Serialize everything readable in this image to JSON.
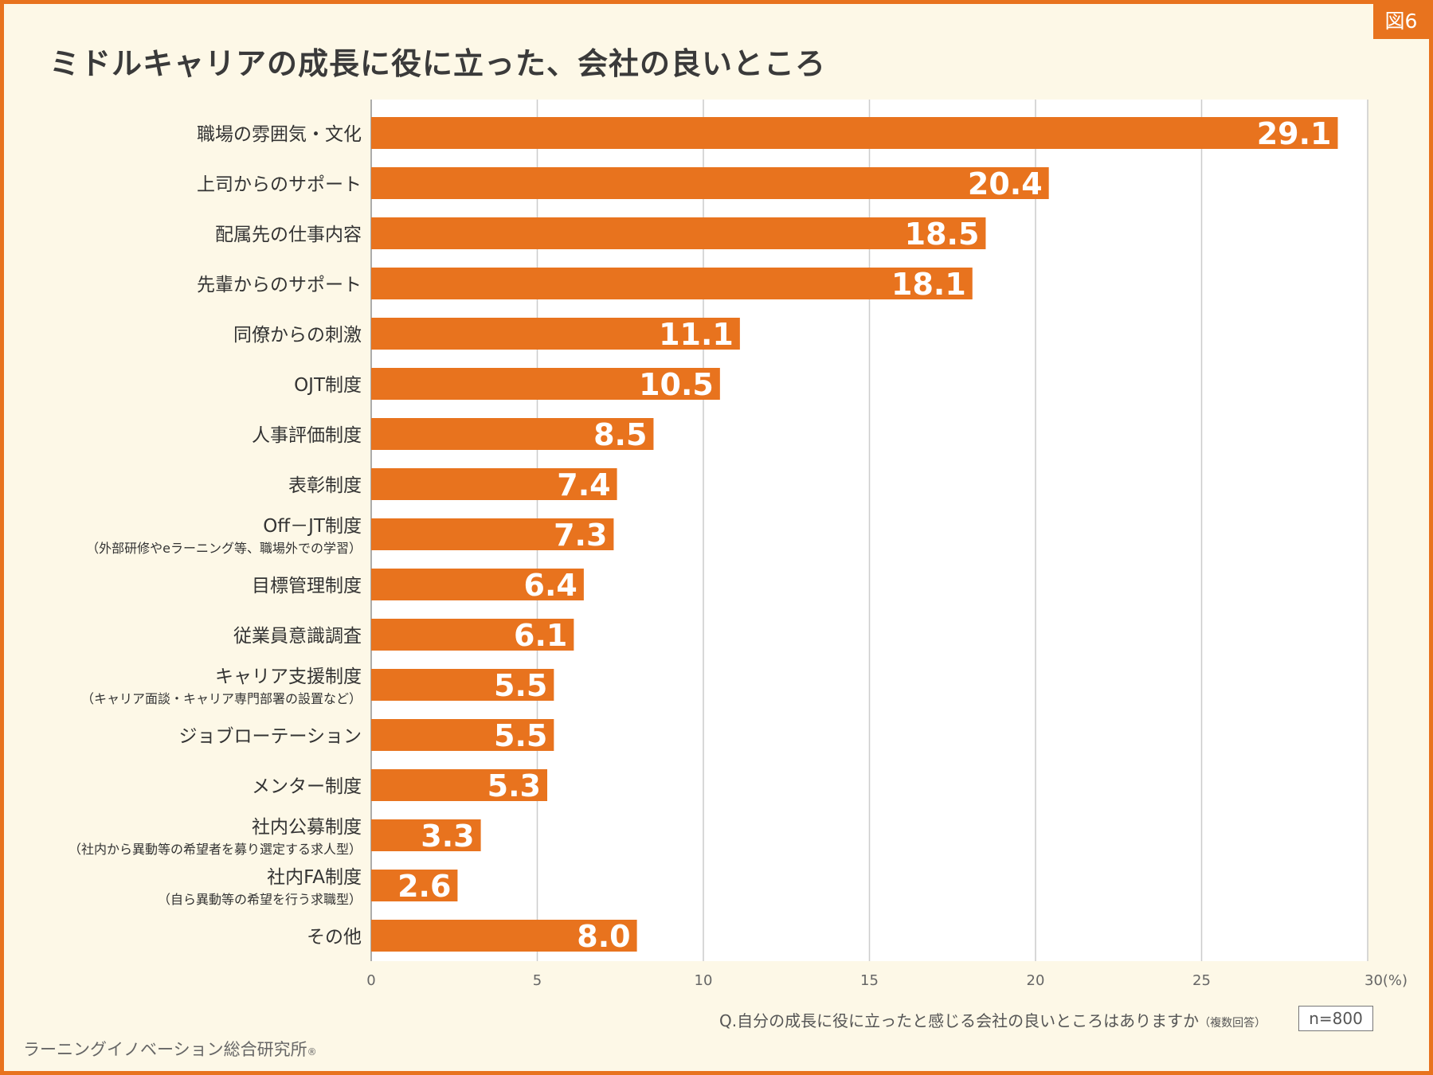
{
  "figure_badge": "図6",
  "chart_data": {
    "type": "bar",
    "orientation": "horizontal",
    "title": "ミドルキャリアの成長に役に立った、会社の良いところ",
    "categories": [
      {
        "label": "職場の雰囲気・文化",
        "sub": ""
      },
      {
        "label": "上司からのサポート",
        "sub": ""
      },
      {
        "label": "配属先の仕事内容",
        "sub": ""
      },
      {
        "label": "先輩からのサポート",
        "sub": ""
      },
      {
        "label": "同僚からの刺激",
        "sub": ""
      },
      {
        "label": "OJT制度",
        "sub": ""
      },
      {
        "label": "人事評価制度",
        "sub": ""
      },
      {
        "label": "表彰制度",
        "sub": ""
      },
      {
        "label": "Off－JT制度",
        "sub": "（外部研修やeラーニング等、職場外での学習）"
      },
      {
        "label": "目標管理制度",
        "sub": ""
      },
      {
        "label": "従業員意識調査",
        "sub": ""
      },
      {
        "label": "キャリア支援制度",
        "sub": "（キャリア面談・キャリア専門部署の設置など）"
      },
      {
        "label": "ジョブローテーション",
        "sub": ""
      },
      {
        "label": "メンター制度",
        "sub": ""
      },
      {
        "label": "社内公募制度",
        "sub": "（社内から異動等の希望者を募り選定する求人型）"
      },
      {
        "label": "社内FA制度",
        "sub": "（自ら異動等の希望を行う求職型）"
      },
      {
        "label": "その他",
        "sub": ""
      }
    ],
    "values": [
      29.1,
      20.4,
      18.5,
      18.1,
      11.1,
      10.5,
      8.5,
      7.4,
      7.3,
      6.4,
      6.1,
      5.5,
      5.5,
      5.3,
      3.3,
      2.6,
      8.0
    ],
    "value_labels": [
      "29.1",
      "20.4",
      "18.5",
      "18.1",
      "11.1",
      "10.5",
      "8.5",
      "7.4",
      "7.3",
      "6.4",
      "6.1",
      "5.5",
      "5.5",
      "5.3",
      "3.3",
      "2.6",
      "8.0"
    ],
    "xlim": [
      0,
      30
    ],
    "x_ticks": [
      0,
      5,
      10,
      15,
      20,
      25,
      30
    ],
    "x_tick_labels": [
      "0",
      "5",
      "10",
      "15",
      "20",
      "25",
      "30(%)"
    ],
    "grid": true,
    "bar_color": "#e8731e",
    "grid_color": "#cccccc"
  },
  "question": "Q.自分の成長に役に立ったと感じる会社の良いところはありますか",
  "question_note": "（複数回答）",
  "sample_size": "n=800",
  "source": "ラーニングイノベーション総合研究所",
  "source_mark": "®"
}
